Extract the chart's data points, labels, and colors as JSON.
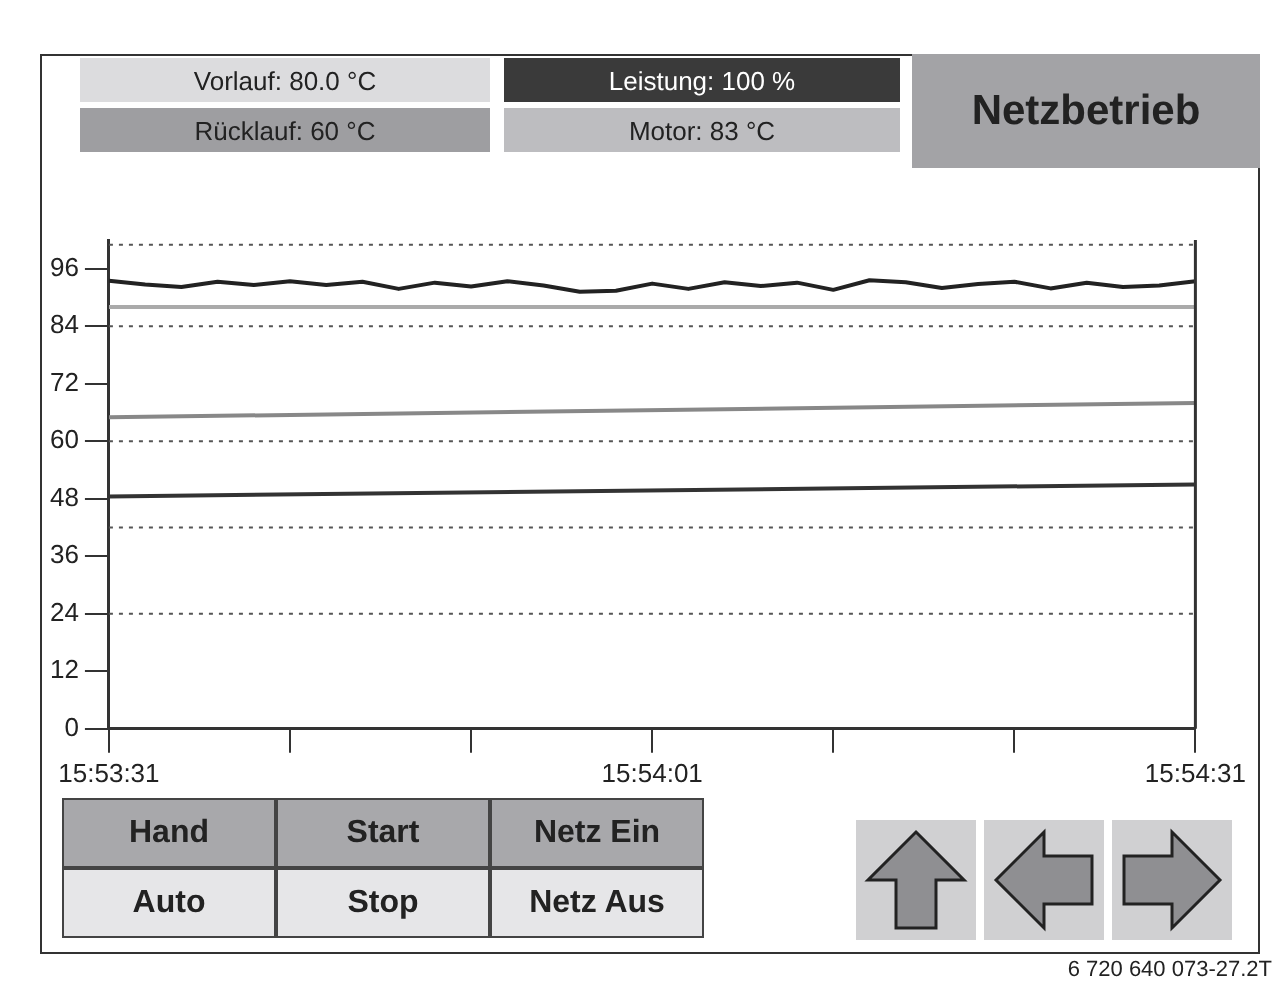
{
  "chart_data": {
    "type": "line",
    "annotations": [
      "Vorlauf: 80.0 °C",
      "Leistung: 100 %",
      "Rücklauf: 60 °C",
      "Motor: 83 °C",
      "Netzbetrieb",
      "Hand",
      "Start",
      "Netz Ein",
      "Auto",
      "Stop",
      "Netz Aus",
      "6 720 640 073-27.2T"
    ],
    "series": [
      {
        "color": "#222222",
        "x": [
          15.891944,
          15.8925,
          15.893056,
          15.893611,
          15.894167,
          15.894722,
          15.895278,
          15.895833,
          15.896389,
          15.896944,
          15.8975,
          15.898056,
          15.898611,
          15.899167,
          15.899722,
          15.900278,
          15.900833,
          15.901389,
          15.901944,
          15.9025,
          15.903056,
          15.903611,
          15.904167,
          15.904722,
          15.905278,
          15.905833,
          15.906389,
          15.906944,
          15.9075,
          15.908056,
          15.908611
        ],
        "values": [
          93.5,
          92.7,
          92.2,
          93.3,
          92.6,
          93.4,
          92.6,
          93.3,
          91.8,
          93.1,
          92.3,
          93.4,
          92.5,
          91.2,
          91.4,
          92.9,
          91.8,
          93.2,
          92.4,
          93.1,
          91.6,
          93.6,
          93.2,
          92,
          92.8,
          93.3,
          91.9,
          93.1,
          92.2,
          92.5,
          93.4
        ]
      },
      {
        "color": "#aaaaaa",
        "x": [
          15.891944,
          15.908611
        ],
        "values": [
          88,
          88
        ]
      },
      {
        "color": "#888888",
        "x": [
          15.891944,
          15.908611
        ],
        "values": [
          65,
          68
        ]
      },
      {
        "color": "#333333",
        "x": [
          15.891944,
          15.908611
        ],
        "values": [
          48.5,
          51
        ]
      }
    ],
    "xlim": [
      15.891944,
      15.908611
    ],
    "xticks": [
      {
        "value": 15.891944,
        "label": "15:53:31"
      },
      {
        "value": 15.894722,
        "label": null
      },
      {
        "value": 15.8975,
        "label": null
      },
      {
        "value": 15.900278,
        "label": "15:54:01"
      },
      {
        "value": 15.903056,
        "label": null
      },
      {
        "value": 15.905833,
        "label": null
      },
      {
        "value": 15.908611,
        "label": "15:54:31"
      }
    ],
    "ylim": [
      0,
      102
    ],
    "yticks": [
      0,
      12,
      24,
      36,
      48,
      60,
      72,
      84,
      96
    ],
    "ref_lines": [
      {
        "axis": "y",
        "value": 24,
        "color": "#555555",
        "line_style": "dotted"
      },
      {
        "axis": "y",
        "value": 42,
        "color": "#555555",
        "line_style": "dotted"
      },
      {
        "axis": "y",
        "value": 60,
        "color": "#555555",
        "line_style": "dotted"
      },
      {
        "axis": "y",
        "value": 84,
        "color": "#555555",
        "line_style": "dotted"
      },
      {
        "axis": "y",
        "value": 101,
        "color": "#555555",
        "line_style": "dotted"
      }
    ],
    "legend": false,
    "grid": false,
    "marker": "none",
    "line_style": "solid"
  }
}
